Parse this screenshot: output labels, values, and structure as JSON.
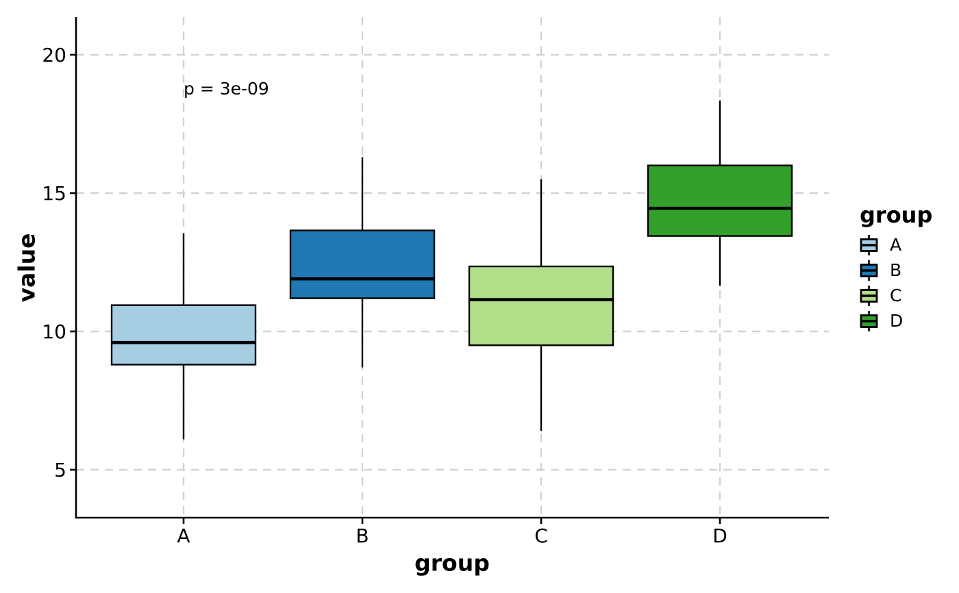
{
  "chart_data": {
    "type": "box",
    "title": "",
    "xlabel": "group",
    "ylabel": "value",
    "categories": [
      "A",
      "B",
      "C",
      "D"
    ],
    "yticks": [
      5,
      10,
      15,
      20
    ],
    "ylim": [
      3.3,
      21.4
    ],
    "grid": "dashed gray, both axes, at each tick and category",
    "legend_position": "right",
    "annotation": {
      "text": "p = 3e-09"
    },
    "legend": {
      "title": "group",
      "labels": [
        "A",
        "B",
        "C",
        "D"
      ]
    },
    "series": [
      {
        "name": "A",
        "color": "#a6cee3",
        "whisker_low": 6.1,
        "q1": 8.8,
        "median": 9.6,
        "q3": 10.95,
        "whisker_high": 13.55
      },
      {
        "name": "B",
        "color": "#1f78b4",
        "whisker_low": 8.7,
        "q1": 11.2,
        "median": 11.9,
        "q3": 13.65,
        "whisker_high": 16.3
      },
      {
        "name": "C",
        "color": "#b2df8a",
        "whisker_low": 6.4,
        "q1": 9.5,
        "median": 11.15,
        "q3": 12.35,
        "whisker_high": 15.5
      },
      {
        "name": "D",
        "color": "#33a02c",
        "whisker_low": 11.65,
        "q1": 13.45,
        "median": 14.45,
        "q3": 16.0,
        "whisker_high": 18.35
      }
    ],
    "colors": {
      "axis": "#000000",
      "text": "#000000",
      "gridline": "#d2d2d2",
      "background": "#ffffff"
    }
  }
}
